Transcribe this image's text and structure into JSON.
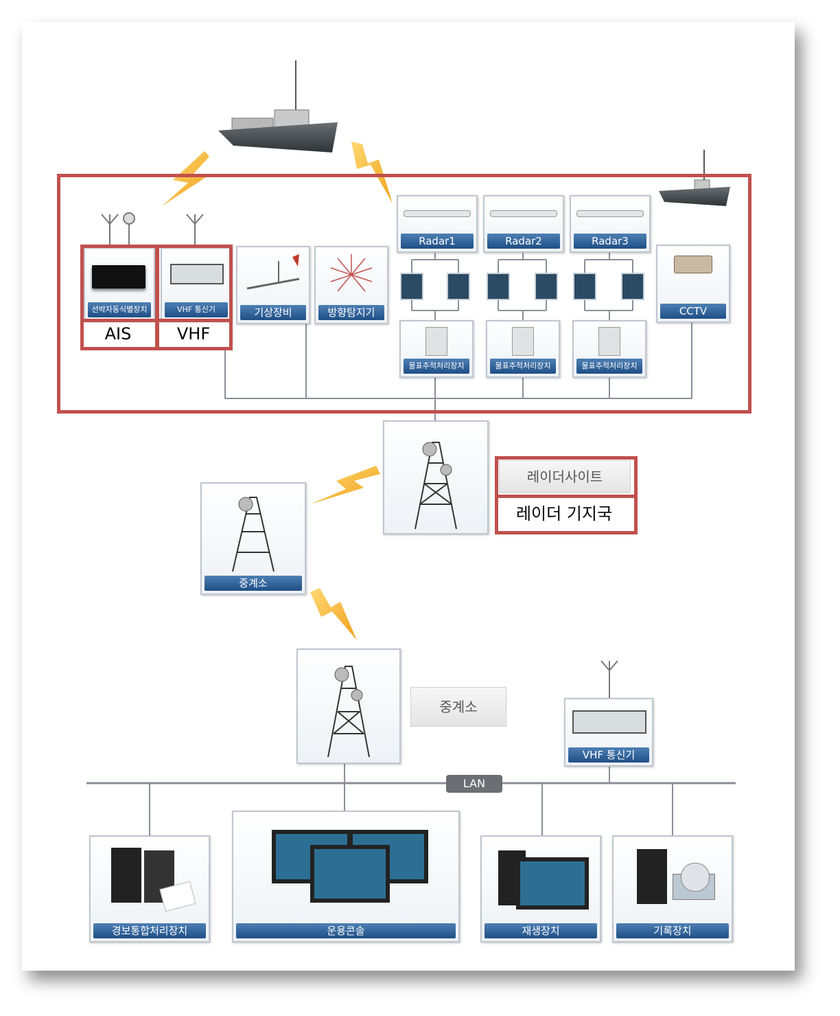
{
  "colors": {
    "red_frame": "#c0504d",
    "label_blue": "#1f4f86",
    "bolt": "#f3b32a",
    "line": "#8a8f96"
  },
  "radar_site": {
    "devices": [
      {
        "label": "선박자동식별장치",
        "abbr": "AIS",
        "icon": "ais-box-icon"
      },
      {
        "label": "VHF 통신기",
        "abbr": "VHF",
        "icon": "vhf-radio-icon"
      },
      {
        "label": "기상장비",
        "icon": "weather-station-icon"
      },
      {
        "label": "방향탐지기",
        "icon": "direction-finder-icon"
      }
    ],
    "radars": [
      {
        "label": "Radar1",
        "tracker": "물표추적처리장치"
      },
      {
        "label": "Radar2",
        "tracker": "물표추적처리장치"
      },
      {
        "label": "Radar3",
        "tracker": "물표추적처리장치"
      }
    ],
    "cctv": "CCTV"
  },
  "site_label": {
    "name": "레이더사이트",
    "translation": "레이더 기지국"
  },
  "relay_top": "중계소",
  "relay_center_label": "중계소",
  "vhf_center": "VHF 통신기",
  "lan_label": "LAN",
  "center_devices": [
    {
      "label": "경보통합처리장치",
      "icon": "alarm-processor-icon"
    },
    {
      "label": "운용콘솔",
      "icon": "operation-console-icon"
    },
    {
      "label": "재생장치",
      "icon": "playback-device-icon"
    },
    {
      "label": "기록장치",
      "icon": "recording-device-icon"
    }
  ]
}
